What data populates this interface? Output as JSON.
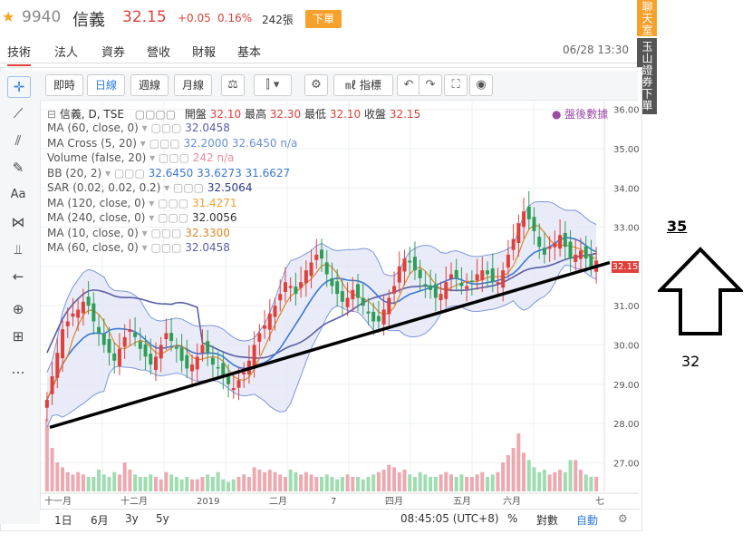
{
  "header": {
    "code": "9940",
    "name": "信義",
    "price": "32.15",
    "change": "+0.05",
    "change_pct": "0.16%",
    "volume": "242張",
    "order_button": "下單"
  },
  "tabs": [
    "技術",
    "法人",
    "資券",
    "營收",
    "財報",
    "基本"
  ],
  "datetime": "06/28 13:30",
  "side_tabs": [
    "聊天室",
    "玉山證券下單"
  ],
  "toolbar": {
    "intervals": [
      "即時",
      "日線",
      "週線",
      "月線"
    ],
    "active_interval": "日線",
    "indicator_label": "指標"
  },
  "legend": {
    "title": "信義, D, TSE",
    "ohlc": [
      {
        "label": "開盤",
        "value": "32.10"
      },
      {
        "label": "最高",
        "value": "32.30"
      },
      {
        "label": "最低",
        "value": "32.10"
      },
      {
        "label": "收盤",
        "value": "32.15"
      }
    ],
    "after_hours": "盤後數據",
    "rows": [
      {
        "label": "MA (60, close, 0)",
        "values": "32.0458",
        "color": "#5b5ea6"
      },
      {
        "label": "MA Cross (5, 20)",
        "values": "32.2000 32.6450 n/a",
        "color": "#6a8fd8"
      },
      {
        "label": "Volume (false, 20)",
        "values": "242 n/a",
        "color": "#e88c9b"
      },
      {
        "label": "BB (20, 2)",
        "values": "32.6450 33.6273 31.6627",
        "color": "#3b77d6"
      },
      {
        "label": "SAR (0.02, 0.02, 0.2)",
        "values": "32.5064",
        "color": "#2b3a8f"
      },
      {
        "label": "MA (120, close, 0)",
        "values": "31.4271",
        "color": "#f0a030"
      },
      {
        "label": "MA (240, close, 0)",
        "values": "32.0056",
        "color": "#333333"
      },
      {
        "label": "MA (10, close, 0)",
        "values": "32.3300",
        "color": "#d9882b"
      },
      {
        "label": "MA (60, close, 0)",
        "values": "32.0458",
        "color": "#5b5ea6"
      }
    ]
  },
  "x_axis_labels": [
    "十一月",
    "十二月",
    "2019",
    "二月",
    "7",
    "四月",
    "五月",
    "六月",
    "七"
  ],
  "price_tag": "32.15",
  "bottom_bar": {
    "ranges": [
      "1日",
      "6月",
      "3y",
      "5y"
    ],
    "time": "08:45:05 (UTC+8)",
    "pct": "%",
    "log": "對數",
    "auto": "自動"
  },
  "annotations": {
    "top_value": "35",
    "bottom_value": "32"
  },
  "colors": {
    "up": "#e0403a",
    "down": "#2e9e57",
    "accent": "#f5a12b",
    "ma60": "#5b5ea6",
    "ma120": "#f0a030",
    "bb": "#3b77d6"
  },
  "chart_data": {
    "type": "candlestick",
    "title": "信義, D, TSE",
    "ylim": [
      26.5,
      36.2
    ],
    "y_ticks": [
      "36.00",
      "35.00",
      "34.00",
      "33.00",
      "32.00",
      "31.00",
      "30.00",
      "29.00",
      "28.00",
      "27.00"
    ],
    "x_labels": [
      "十一月",
      "十二月",
      "2019",
      "二月",
      "7",
      "四月",
      "五月",
      "六月",
      "七"
    ],
    "close": [
      28.6,
      29.2,
      29.8,
      30.4,
      30.6,
      30.8,
      30.9,
      31.1,
      31.0,
      30.6,
      30.3,
      30.0,
      29.8,
      29.6,
      29.9,
      30.2,
      30.4,
      30.2,
      29.9,
      29.7,
      29.5,
      29.7,
      30.0,
      30.3,
      30.1,
      29.9,
      29.6,
      29.4,
      29.5,
      29.7,
      30.0,
      29.8,
      29.5,
      29.4,
      29.2,
      29.0,
      28.9,
      29.1,
      29.3,
      29.6,
      30.0,
      30.3,
      30.5,
      30.8,
      31.0,
      31.3,
      31.6,
      31.5,
      31.3,
      31.6,
      31.9,
      32.1,
      32.3,
      32.2,
      31.8,
      31.5,
      31.3,
      31.1,
      31.2,
      31.4,
      31.2,
      31.0,
      30.8,
      30.6,
      30.6,
      30.9,
      31.2,
      31.5,
      32.0,
      32.2,
      32.1,
      31.9,
      31.7,
      31.5,
      31.4,
      31.2,
      31.3,
      31.6,
      31.8,
      31.7,
      31.5,
      31.5,
      31.6,
      31.8,
      31.9,
      31.8,
      31.6,
      31.6,
      31.9,
      32.3,
      32.7,
      33.1,
      33.4,
      33.2,
      32.9,
      32.5,
      32.3,
      32.5,
      32.6,
      32.8,
      32.5,
      32.2,
      32.3,
      32.4,
      32.2,
      32.0,
      32.15
    ],
    "volume": [
      3.0,
      1.8,
      1.2,
      1.0,
      0.8,
      0.7,
      0.8,
      0.7,
      0.6,
      0.6,
      0.9,
      0.7,
      0.6,
      0.8,
      0.7,
      1.2,
      0.9,
      0.7,
      0.6,
      0.6,
      0.7,
      0.6,
      0.5,
      0.8,
      0.7,
      0.6,
      0.5,
      0.6,
      0.5,
      0.5,
      0.6,
      0.7,
      0.6,
      0.8,
      0.5,
      0.4,
      0.5,
      0.6,
      0.7,
      0.6,
      1.0,
      0.9,
      0.8,
      0.9,
      0.8,
      0.7,
      0.6,
      0.9,
      0.8,
      0.7,
      0.8,
      0.7,
      0.6,
      0.6,
      0.7,
      0.6,
      0.5,
      0.6,
      0.7,
      0.6,
      0.6,
      0.5,
      0.6,
      0.7,
      0.8,
      0.9,
      1.1,
      1.0,
      0.8,
      0.9,
      0.7,
      0.6,
      0.8,
      0.7,
      0.6,
      0.6,
      0.7,
      0.8,
      0.7,
      0.6,
      0.7,
      0.6,
      0.6,
      0.7,
      0.8,
      0.6,
      0.7,
      0.8,
      1.2,
      1.5,
      1.8,
      2.4,
      1.6,
      1.3,
      1.0,
      0.8,
      0.9,
      0.7,
      0.8,
      0.9,
      0.8,
      1.3,
      1.3,
      0.9,
      0.7,
      0.6,
      0.6
    ],
    "trendline": {
      "from": 27.9,
      "to": 32.1
    }
  }
}
